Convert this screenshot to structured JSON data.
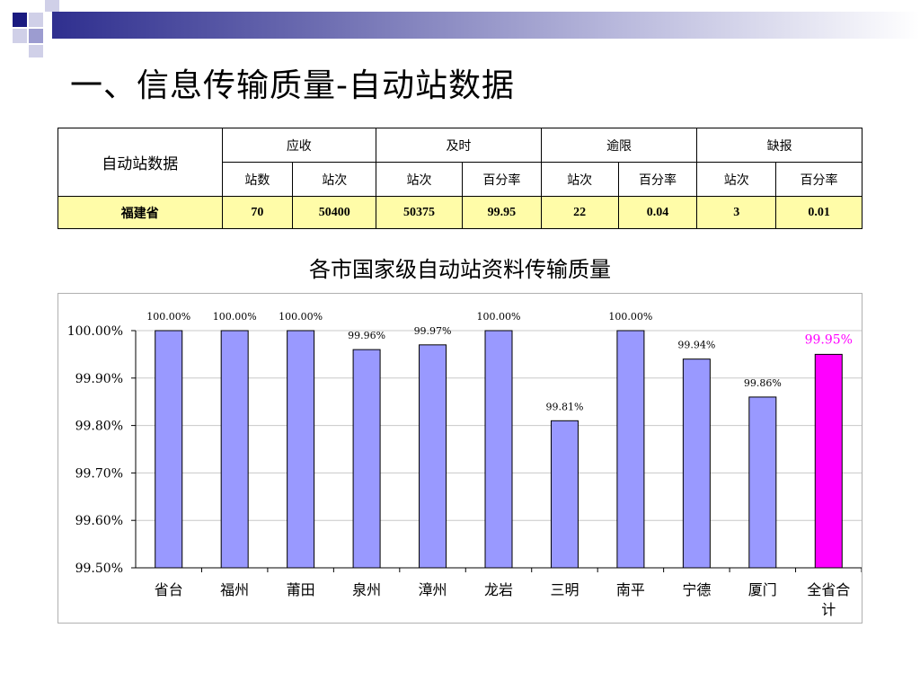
{
  "page": {
    "title": "一、信息传输质量-自动站数据"
  },
  "table": {
    "row_header": "自动站数据",
    "groups": [
      "应收",
      "及时",
      "逾限",
      "缺报"
    ],
    "subheaders": [
      "站数",
      "站次",
      "站次",
      "百分率",
      "站次",
      "百分率",
      "站次",
      "百分率"
    ],
    "row": {
      "name": "福建省",
      "values": [
        "70",
        "50400",
        "50375",
        "99.95",
        "22",
        "0.04",
        "3",
        "0.01"
      ]
    }
  },
  "chart_data": {
    "type": "bar",
    "title": "各市国家级自动站资料传输质量",
    "categories": [
      "省台",
      "福州",
      "莆田",
      "泉州",
      "漳州",
      "龙岩",
      "三明",
      "南平",
      "宁德",
      "厦门",
      "全省合计"
    ],
    "values": [
      100.0,
      100.0,
      100.0,
      99.96,
      99.97,
      100.0,
      99.81,
      100.0,
      99.94,
      99.86,
      99.95
    ],
    "data_labels": [
      "100.00%",
      "100.00%",
      "100.00%",
      "99.96%",
      "99.97%",
      "100.00%",
      "99.81%",
      "100.00%",
      "99.94%",
      "99.86%",
      "99.95%"
    ],
    "y_ticks": [
      "100.00%",
      "99.90%",
      "99.80%",
      "99.70%",
      "99.60%",
      "99.50%"
    ],
    "ylim": [
      99.5,
      100.0
    ],
    "grid": true,
    "legend": "none",
    "bar_color": "#9999ff",
    "highlight_color": "#ff00ff",
    "highlight_index": 10
  }
}
